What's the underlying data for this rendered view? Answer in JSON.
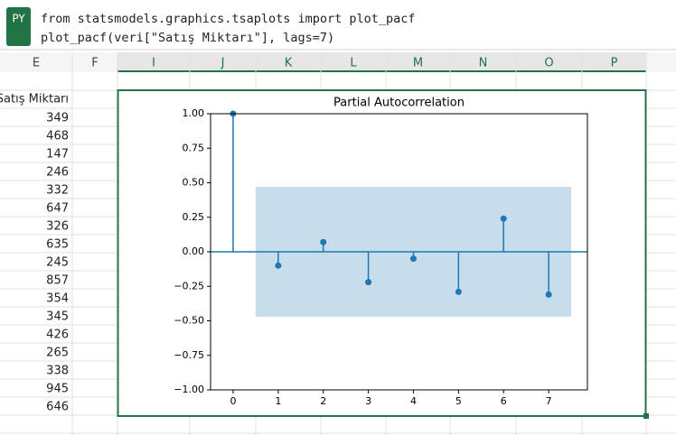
{
  "editor": {
    "badge": "PY",
    "code": [
      "from statsmodels.graphics.tsaplots import plot_pacf",
      "plot_pacf(veri[\"Satış Miktarı\"], lags=7)"
    ]
  },
  "sheet": {
    "columns": [
      "E",
      "F",
      "I",
      "J",
      "K",
      "L",
      "M",
      "N",
      "O",
      "P"
    ],
    "header_cell": "Satış Miktarı",
    "values": [
      349,
      468,
      147,
      246,
      332,
      647,
      326,
      635,
      245,
      857,
      354,
      345,
      426,
      265,
      338,
      945,
      646
    ]
  },
  "chart_data": {
    "type": "stem",
    "title": "Partial Autocorrelation",
    "x": [
      0,
      1,
      2,
      3,
      4,
      5,
      6,
      7
    ],
    "values": [
      1.0,
      -0.1,
      0.07,
      -0.22,
      -0.05,
      -0.29,
      0.24,
      -0.31
    ],
    "color": "#1f77b4",
    "confidence_band": {
      "x_range": [
        0.5,
        7.5
      ],
      "y_range": [
        -0.47,
        0.47
      ]
    },
    "xlim": [
      -0.5,
      7.86
    ],
    "xticks": [
      0,
      1,
      2,
      3,
      4,
      5,
      6,
      7
    ],
    "ylim": [
      -1,
      1
    ],
    "yticks": [
      {
        "value": -1,
        "label": "−1.00"
      },
      {
        "value": -0.75,
        "label": "−0.75"
      },
      {
        "value": -0.5,
        "label": "−0.50"
      },
      {
        "value": -0.25,
        "label": "−0.25"
      },
      {
        "value": 0,
        "label": "0.00"
      },
      {
        "value": 0.25,
        "label": "0.25"
      },
      {
        "value": 0.5,
        "label": "0.50"
      },
      {
        "value": 0.75,
        "label": "0.75"
      },
      {
        "value": 1,
        "label": "1.00"
      }
    ]
  }
}
